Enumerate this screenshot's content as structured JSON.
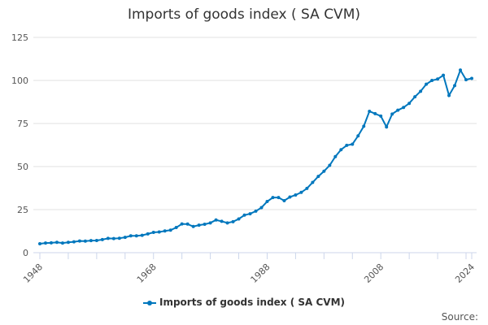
{
  "chart_data": {
    "type": "line",
    "title": "Imports of goods index ( SA CVM)",
    "xlabel": "",
    "ylabel": "",
    "x_ticks": [
      "1948",
      "1968",
      "1988",
      "2008",
      "2024"
    ],
    "y_ticks": [
      0,
      25,
      50,
      75,
      100,
      125
    ],
    "ylim": [
      0,
      125
    ],
    "xlim": [
      1948,
      2024
    ],
    "grid": "horizontal",
    "legend_position": "bottom",
    "color": "#0077bd",
    "x": [
      1948,
      1949,
      1950,
      1951,
      1952,
      1953,
      1954,
      1955,
      1956,
      1957,
      1958,
      1959,
      1960,
      1961,
      1962,
      1963,
      1964,
      1965,
      1966,
      1967,
      1968,
      1969,
      1970,
      1971,
      1972,
      1973,
      1974,
      1975,
      1976,
      1977,
      1978,
      1979,
      1980,
      1981,
      1982,
      1983,
      1984,
      1985,
      1986,
      1987,
      1988,
      1989,
      1990,
      1991,
      1992,
      1993,
      1994,
      1995,
      1996,
      1997,
      1998,
      1999,
      2000,
      2001,
      2002,
      2003,
      2004,
      2005,
      2006,
      2007,
      2008,
      2009,
      2010,
      2011,
      2012,
      2013,
      2014,
      2015,
      2016,
      2017,
      2018,
      2019,
      2020,
      2021,
      2022,
      2023,
      2024
    ],
    "series": [
      {
        "name": "Imports of goods index ( SA CVM)",
        "values": [
          5.2,
          5.6,
          5.7,
          6.0,
          5.6,
          6.0,
          6.3,
          6.8,
          6.7,
          7.0,
          7.1,
          7.6,
          8.3,
          8.2,
          8.4,
          8.9,
          9.8,
          9.8,
          10.1,
          10.9,
          11.8,
          12.0,
          12.6,
          13.1,
          14.6,
          16.7,
          16.6,
          15.2,
          16.0,
          16.5,
          17.3,
          19.0,
          18.2,
          17.3,
          18.0,
          19.6,
          21.8,
          22.6,
          24.1,
          26.2,
          29.7,
          32.0,
          32.0,
          30.2,
          32.3,
          33.5,
          35.0,
          37.3,
          40.8,
          44.3,
          47.3,
          50.7,
          55.8,
          59.8,
          62.3,
          63.0,
          67.8,
          73.4,
          82.1,
          80.7,
          79.3,
          73.0,
          80.5,
          82.7,
          84.3,
          86.7,
          90.5,
          93.7,
          97.8,
          100.0,
          100.8,
          103.0,
          91.3,
          97.0,
          106.0,
          100.4,
          101.2
        ]
      }
    ]
  },
  "legend": {
    "label": "Imports of goods index ( SA CVM)"
  },
  "source": "Source:"
}
